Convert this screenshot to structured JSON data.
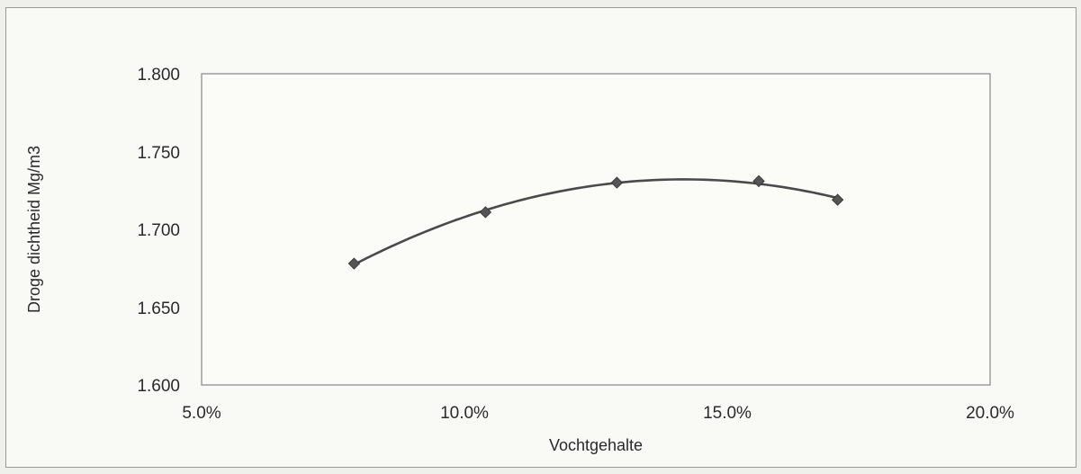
{
  "chart_data": {
    "type": "scatter",
    "title": "",
    "xlabel": "Vochtgehalte",
    "ylabel": "Droge dichtheid Mg/m3",
    "xlim": [
      5.0,
      20.0
    ],
    "ylim": [
      1.6,
      1.8
    ],
    "x_ticks": [
      "5.0%",
      "10.0%",
      "15.0%",
      "20.0%"
    ],
    "y_ticks": [
      "1.800",
      "1.750",
      "1.700",
      "1.650",
      "1.600"
    ],
    "grid": false,
    "legend": "none",
    "series": [
      {
        "x": [
          7.9,
          10.4,
          12.9,
          15.6,
          17.1
        ],
        "y": [
          1.678,
          1.711,
          1.73,
          1.731,
          1.719
        ],
        "trendline": "polynomial",
        "marker": "diamond"
      }
    ],
    "colors": {
      "line": "#4a4a4a",
      "marker": "#555555",
      "axis": "#8f8f8f"
    }
  }
}
